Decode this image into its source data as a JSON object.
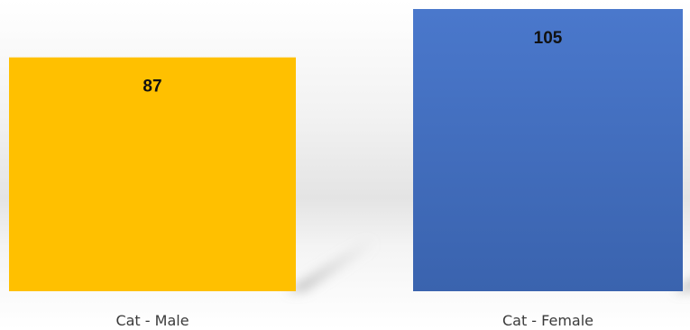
{
  "chart_data": {
    "type": "bar",
    "categories": [
      "Cat - Male",
      "Cat - Female"
    ],
    "values": [
      87,
      105
    ],
    "data_labels": [
      "87",
      "105"
    ],
    "colors": [
      "#FFC000",
      "#4472C4"
    ],
    "title": "",
    "xlabel": "",
    "ylabel": "",
    "ylim": [
      0,
      110
    ],
    "grid": false,
    "legend": "none"
  }
}
